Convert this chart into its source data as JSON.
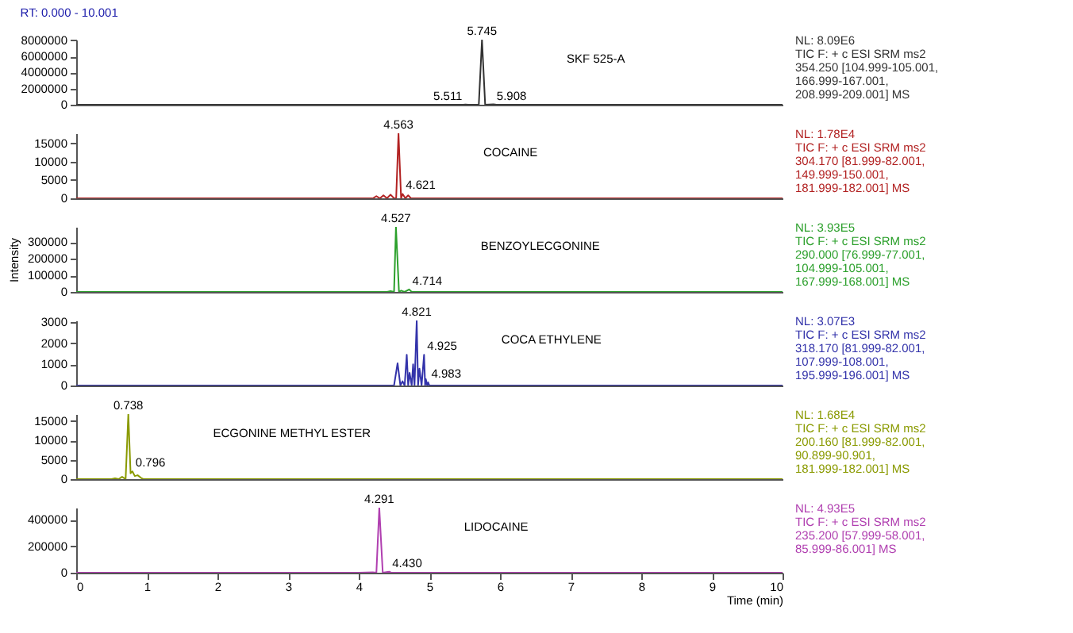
{
  "chart_data": [
    {
      "type": "line",
      "title": "RT: 0.000 - 10.001",
      "xlim": [
        0,
        10
      ],
      "ylim": [
        0,
        8090000
      ],
      "yticks": [
        0,
        2000000,
        4000000,
        6000000,
        8000000
      ],
      "tick_labels": "y",
      "series": [
        {
          "color": "#333333",
          "x": [
            0,
            5.48,
            5.511,
            5.55,
            5.7,
            5.745,
            5.79,
            5.908,
            5.95,
            10
          ],
          "values": [
            0,
            0,
            30000,
            0,
            0,
            8090000,
            0,
            40000,
            0,
            0
          ]
        }
      ],
      "annotations": [
        "SKF 525-A",
        "NL: 8.09E6",
        "TIC F: + c ESI SRM ms2",
        "354.250 [104.999-105.001,",
        "166.999-167.001,",
        "208.999-209.001]  MS",
        {
          "text": "5.745",
          "x": 5.745,
          "y": 8090000
        },
        {
          "text": "5.511",
          "x": 5.511,
          "y": 30000
        },
        {
          "text": "5.908",
          "x": 5.908,
          "y": 40000
        }
      ]
    },
    {
      "type": "line",
      "xlim": [
        0,
        10
      ],
      "ylim": [
        0,
        17800
      ],
      "yticks": [
        0,
        5000,
        10000,
        15000
      ],
      "tick_labels": "y",
      "series": [
        {
          "color": "#b22222",
          "x": [
            0,
            4.2,
            4.25,
            4.3,
            4.35,
            4.4,
            4.45,
            4.5,
            4.53,
            4.563,
            4.6,
            4.621,
            4.66,
            4.7,
            4.74,
            10
          ],
          "values": [
            0,
            0,
            600,
            0,
            800,
            0,
            1000,
            0,
            0,
            17800,
            0,
            1200,
            0,
            800,
            0,
            0
          ]
        }
      ],
      "annotations": [
        "COCAINE",
        "NL: 1.78E4",
        "TIC F: + c ESI SRM ms2",
        "304.170 [81.999-82.001,",
        "149.999-150.001,",
        "181.999-182.001]  MS",
        {
          "text": "4.563",
          "x": 4.563,
          "y": 17800
        },
        {
          "text": "4.621",
          "x": 4.621,
          "y": 1200
        }
      ]
    },
    {
      "type": "line",
      "ylabel": "Intensity",
      "xlim": [
        0,
        10
      ],
      "ylim": [
        0,
        393000
      ],
      "yticks": [
        0,
        100000,
        200000,
        300000
      ],
      "tick_labels": "y",
      "series": [
        {
          "color": "#2ca02c",
          "x": [
            0,
            4.4,
            4.45,
            4.5,
            4.527,
            4.57,
            4.6,
            4.65,
            4.714,
            4.75,
            10
          ],
          "values": [
            0,
            0,
            5000,
            0,
            393000,
            0,
            8000,
            0,
            15000,
            0,
            0
          ]
        }
      ],
      "annotations": [
        "BENZOYLECGONINE",
        "NL: 3.93E5",
        "TIC F: + c ESI SRM ms2",
        "290.000 [76.999-77.001,",
        "104.999-105.001,",
        "167.999-168.001]  MS",
        {
          "text": "4.527",
          "x": 4.527,
          "y": 393000
        },
        {
          "text": "4.714",
          "x": 4.714,
          "y": 15000
        }
      ]
    },
    {
      "type": "line",
      "xlim": [
        0,
        10
      ],
      "ylim": [
        0,
        3070
      ],
      "yticks": [
        0,
        1000,
        2000,
        3000
      ],
      "tick_labels": "y",
      "series": [
        {
          "color": "#3333aa",
          "x": [
            0,
            4.5,
            4.55,
            4.59,
            4.62,
            4.65,
            4.68,
            4.7,
            4.72,
            4.75,
            4.77,
            4.79,
            4.821,
            4.84,
            4.86,
            4.89,
            4.925,
            4.94,
            4.95,
            4.97,
            4.983,
            5.0,
            10
          ],
          "values": [
            0,
            0,
            1050,
            0,
            200,
            0,
            1450,
            0,
            600,
            0,
            1000,
            0,
            3070,
            0,
            800,
            0,
            1450,
            0,
            300,
            0,
            150,
            0,
            0
          ]
        }
      ],
      "annotations": [
        "COCA ETHYLENE",
        "NL: 3.07E3",
        "TIC F: + c ESI SRM ms2",
        "318.170 [81.999-82.001,",
        "107.999-108.001,",
        "195.999-196.001]  MS",
        {
          "text": "4.821",
          "x": 4.821,
          "y": 3070
        },
        {
          "text": "4.925",
          "x": 4.925,
          "y": 1450
        },
        {
          "text": "4.983",
          "x": 4.983,
          "y": 150
        }
      ]
    },
    {
      "type": "line",
      "xlim": [
        0,
        10
      ],
      "ylim": [
        0,
        16800
      ],
      "yticks": [
        0,
        5000,
        10000,
        15000
      ],
      "tick_labels": "y",
      "series": [
        {
          "color": "#8a9a00",
          "x": [
            0,
            0.5,
            0.55,
            0.6,
            0.65,
            0.7,
            0.738,
            0.77,
            0.796,
            0.83,
            0.87,
            0.92,
            0.95,
            10
          ],
          "values": [
            0,
            0,
            200,
            0,
            600,
            0,
            16800,
            1500,
            2000,
            800,
            1000,
            300,
            0,
            0
          ]
        }
      ],
      "annotations": [
        "ECGONINE METHYL ESTER",
        "NL: 1.68E4",
        "TIC F: + c ESI SRM ms2",
        "200.160 [81.999-82.001,",
        "90.899-90.901,",
        "181.999-182.001]  MS",
        {
          "text": "0.738",
          "x": 0.738,
          "y": 16800
        },
        {
          "text": "0.796",
          "x": 0.796,
          "y": 2000
        }
      ]
    },
    {
      "type": "line",
      "xlabel": "Time (min)",
      "xlim": [
        0,
        10
      ],
      "xticks": [
        0,
        1,
        2,
        3,
        4,
        5,
        6,
        7,
        8,
        9,
        10
      ],
      "ylim": [
        0,
        493000
      ],
      "yticks": [
        0,
        200000,
        400000
      ],
      "series": [
        {
          "color": "#b03fb0",
          "x": [
            0,
            4.0,
            4.2,
            4.25,
            4.291,
            4.34,
            4.43,
            4.46,
            10
          ],
          "values": [
            0,
            0,
            3000,
            0,
            493000,
            0,
            8000,
            0,
            0
          ]
        }
      ],
      "annotations": [
        "LIDOCAINE",
        "NL: 4.93E5",
        "TIC F: + c ESI SRM ms2",
        "235.200 [57.999-58.001,",
        "85.999-86.001]  MS",
        {
          "text": "4.291",
          "x": 4.291,
          "y": 493000
        },
        {
          "text": "4.430",
          "x": 4.43,
          "y": 8000
        }
      ]
    }
  ]
}
